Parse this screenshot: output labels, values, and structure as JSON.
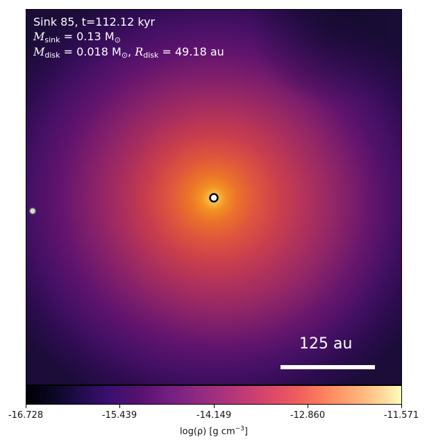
{
  "title": {
    "sink_label": "Sink 85, t=112.12 kyr",
    "msink_symbol": "M",
    "msink_sub": "sink",
    "msink_value": " = 0.13 M",
    "msink_sun": "⊙",
    "mdisk_symbol": "M",
    "mdisk_sub": "disk",
    "mdisk_value": " = 0.018 M",
    "mdisk_sun": "⊙",
    "mdisk_sep": ", ",
    "rdisk_symbol": "R",
    "rdisk_sub": "disk",
    "rdisk_value": " = 49.18 au"
  },
  "scalebar": {
    "label": "125 au"
  },
  "colorbar": {
    "label_prefix": "log(ρ) [g cm",
    "label_exp": "−3",
    "label_suffix": "]",
    "colormap": "inferno",
    "ticks": [
      "-16.728",
      "-15.439",
      "-14.149",
      "-12.860",
      "-11.571"
    ]
  },
  "colors": {
    "text_overlay": "#ffffff",
    "sink_marker_fill": "#ffffff",
    "sink_marker_edge": "#000000"
  },
  "markers": {
    "primary_sink_icon": "circle-marker-icon",
    "secondary_sink_icon": "circle-marker-icon"
  }
}
